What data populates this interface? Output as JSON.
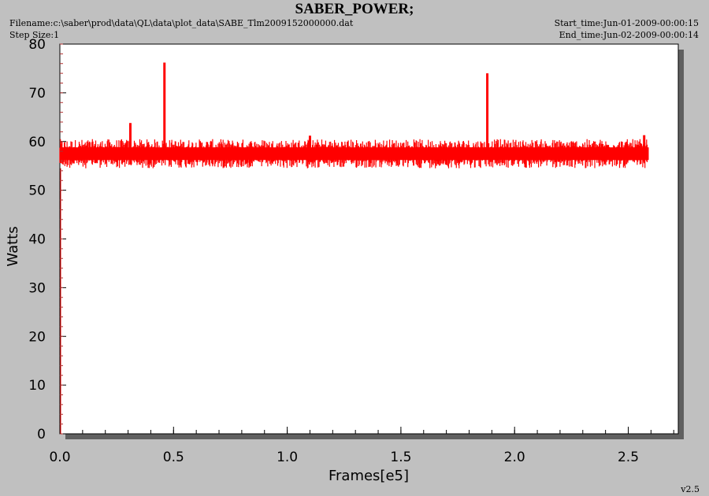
{
  "header": {
    "title": "SABER_POWER;",
    "filename": "Filename:c:\\saber\\prod\\data\\QL\\data\\plot_data\\SABE_Tlm2009152000000.dat",
    "step_size": "Step Size:1",
    "start_time": "Start_time:Jun-01-2009-00:00:15",
    "end_time": "End_time:Jun-02-2009-00:00:14",
    "version": "v2.5"
  },
  "chart_data": {
    "type": "line",
    "title": "SABER_POWER;",
    "xlabel": "Frames[e5]",
    "ylabel": "Watts",
    "xlim": [
      0,
      2.72
    ],
    "ylim": [
      0,
      80
    ],
    "x_ticks": [
      "0.0",
      "0.5",
      "1.0",
      "1.5",
      "2.0",
      "2.5"
    ],
    "y_ticks": [
      "0",
      "10",
      "20",
      "30",
      "40",
      "50",
      "60",
      "70",
      "80"
    ],
    "grid": false,
    "series_color": "#ff0000",
    "series": [
      {
        "x_range": [
          0,
          2.59
        ],
        "baseline": 57.5,
        "band_low": 54.5,
        "band_high": 60.5,
        "spikes": [
          {
            "x": 0.31,
            "y": 63.8
          },
          {
            "x": 0.46,
            "y": 76.2
          },
          {
            "x": 1.1,
            "y": 61.2
          },
          {
            "x": 1.88,
            "y": 74.0
          },
          {
            "x": 2.57,
            "y": 61.3
          }
        ]
      }
    ]
  }
}
